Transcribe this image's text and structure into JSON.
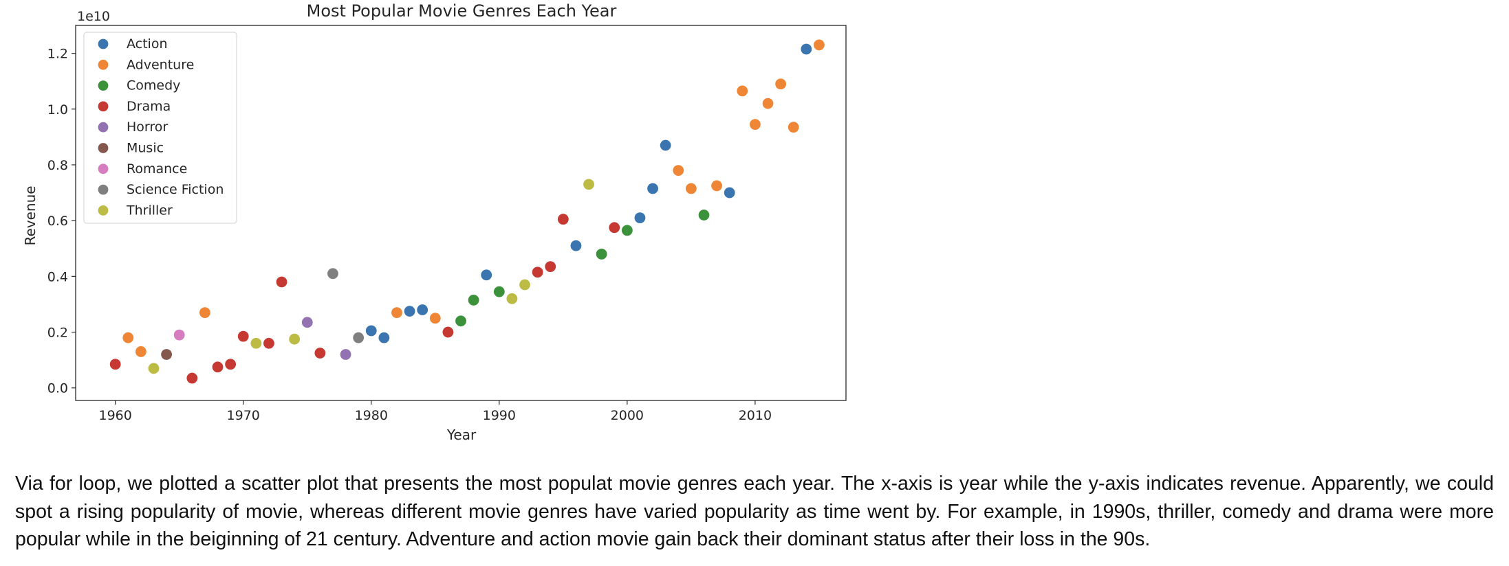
{
  "chart_data": {
    "type": "scatter",
    "title": "Most Popular Movie Genres Each Year",
    "xlabel": "Year",
    "ylabel": "Revenue",
    "y_offset_label": "1e10",
    "xlim": [
      1956.9,
      2017.1
    ],
    "ylim": [
      -0.045,
      1.3
    ],
    "x_ticks": [
      1960,
      1970,
      1980,
      1990,
      2000,
      2010
    ],
    "y_ticks": [
      0.0,
      0.2,
      0.4,
      0.6,
      0.8,
      1.0,
      1.2
    ],
    "y_tick_labels": [
      "0.0",
      "0.2",
      "0.4",
      "0.6",
      "0.8",
      "1.0",
      "1.2"
    ],
    "grid": false,
    "legend_position": "upper-left",
    "series": [
      {
        "name": "Action",
        "color": "#3a75b0",
        "x": [
          1980,
          1981,
          1983,
          1984,
          1989,
          1996,
          2001,
          2002,
          2003,
          2008,
          2014
        ],
        "y": [
          0.205,
          0.18,
          0.275,
          0.28,
          0.405,
          0.51,
          0.61,
          0.715,
          0.87,
          0.7,
          1.215
        ]
      },
      {
        "name": "Adventure",
        "color": "#ef8636",
        "x": [
          1961,
          1962,
          1967,
          1982,
          1985,
          2004,
          2005,
          2007,
          2009,
          2010,
          2011,
          2012,
          2013,
          2015
        ],
        "y": [
          0.18,
          0.13,
          0.27,
          0.27,
          0.25,
          0.78,
          0.715,
          0.725,
          1.065,
          0.945,
          1.02,
          1.09,
          0.935,
          1.23
        ]
      },
      {
        "name": "Comedy",
        "color": "#3b923b",
        "x": [
          1987,
          1988,
          1990,
          1998,
          2000,
          2006
        ],
        "y": [
          0.24,
          0.315,
          0.345,
          0.48,
          0.565,
          0.62
        ]
      },
      {
        "name": "Drama",
        "color": "#c53932",
        "x": [
          1960,
          1966,
          1968,
          1969,
          1970,
          1972,
          1973,
          1976,
          1986,
          1993,
          1994,
          1995,
          1999
        ],
        "y": [
          0.085,
          0.035,
          0.075,
          0.085,
          0.185,
          0.16,
          0.38,
          0.125,
          0.2,
          0.415,
          0.435,
          0.605,
          0.575
        ]
      },
      {
        "name": "Horror",
        "color": "#9372b2",
        "x": [
          1975,
          1978
        ],
        "y": [
          0.235,
          0.12
        ]
      },
      {
        "name": "Music",
        "color": "#85584e",
        "x": [
          1964
        ],
        "y": [
          0.12
        ]
      },
      {
        "name": "Romance",
        "color": "#d57dbe",
        "x": [
          1965
        ],
        "y": [
          0.19
        ]
      },
      {
        "name": "Science Fiction",
        "color": "#7f7f7f",
        "x": [
          1977,
          1979
        ],
        "y": [
          0.41,
          0.18
        ]
      },
      {
        "name": "Thriller",
        "color": "#bcbc45",
        "x": [
          1963,
          1971,
          1974,
          1991,
          1992,
          1997
        ],
        "y": [
          0.07,
          0.16,
          0.175,
          0.32,
          0.37,
          0.73
        ]
      }
    ]
  },
  "caption": "Via for loop, we plotted a scatter plot that presents the most populat movie genres each year. The x-axis is year while the y-axis indicates revenue. Apparently, we could spot a rising popularity of movie, whereas different movie genres have varied popularity as time went by. For example, in 1990s, thriller, comedy and drama were more popular while in the beiginning of 21 century. Adventure and action movie gain back their dominant status after their loss in the 90s."
}
